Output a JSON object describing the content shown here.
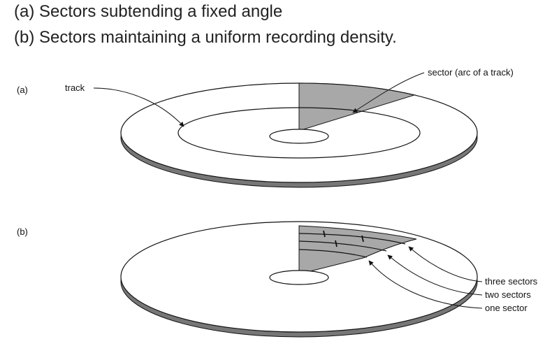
{
  "heading": {
    "line_a": "(a) Sectors subtending a fixed angle",
    "line_b": "(b) Sectors maintaining a uniform recording density."
  },
  "diagram_a": {
    "panel_label": "(a)",
    "track_label": "track",
    "sector_label": "sector (arc of a track)"
  },
  "diagram_b": {
    "panel_label": "(b)",
    "labels": [
      "three sectors",
      "two sectors",
      "one sector"
    ]
  },
  "colors": {
    "sector_fill": "#a8a8a8",
    "disk_edge": "#777777",
    "line": "#111111"
  }
}
